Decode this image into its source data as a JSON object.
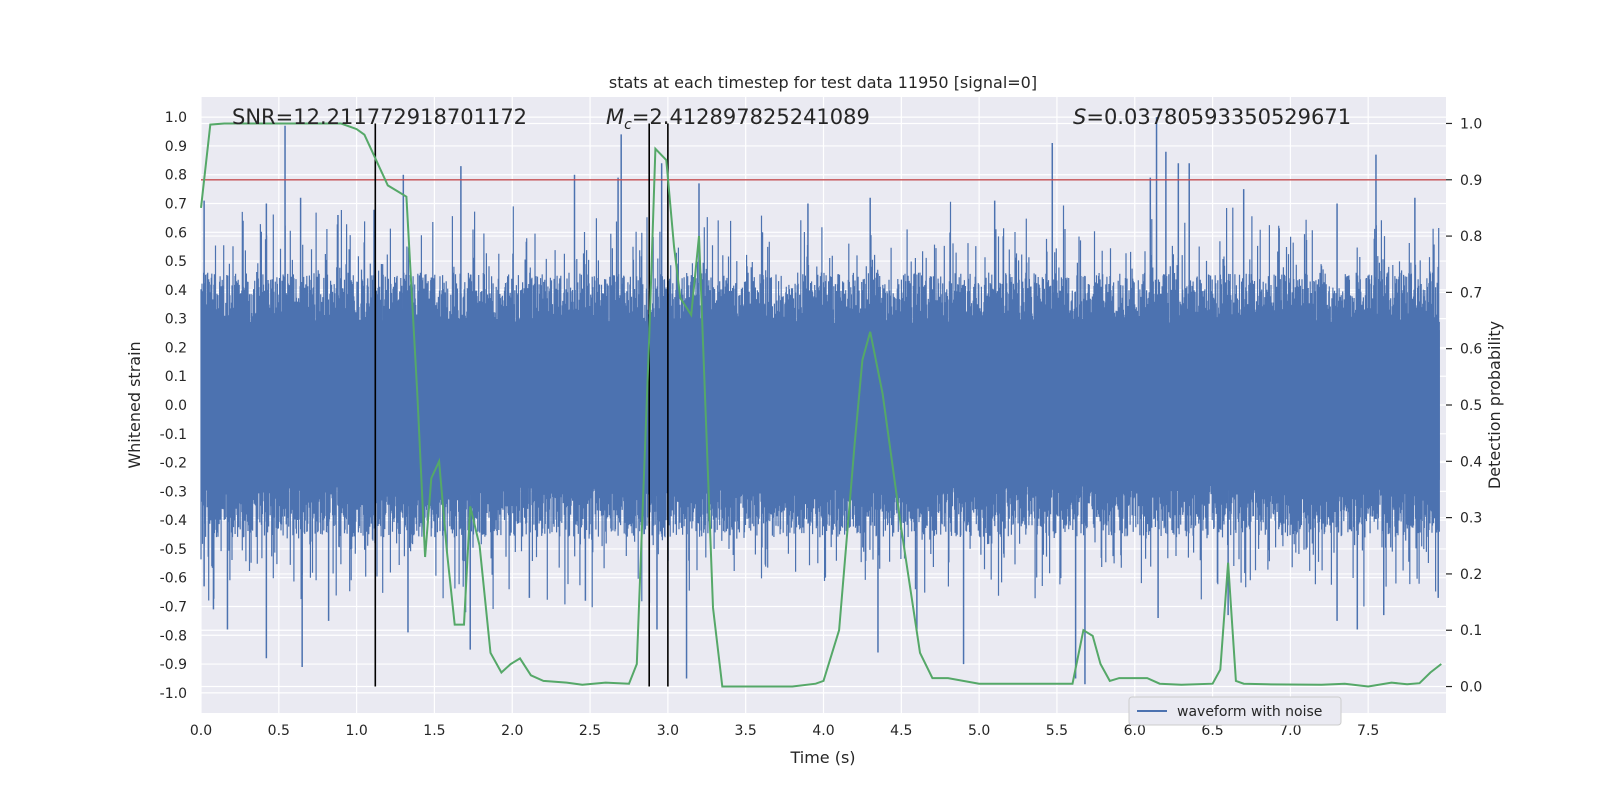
{
  "chart_data": {
    "type": "line",
    "title": "stats at each timestep for test data 11950 [signal=0]",
    "xlabel": "Time (s)",
    "ylabel": "Whitened strain",
    "y2label": "Detection probability",
    "xlim": [
      0.0,
      8.0
    ],
    "ylim": [
      -1.07,
      1.07
    ],
    "y2lim": [
      -0.047,
      1.047
    ],
    "xticks": [
      "0.0",
      "0.5",
      "1.0",
      "1.5",
      "2.0",
      "2.5",
      "3.0",
      "3.5",
      "4.0",
      "4.5",
      "5.0",
      "5.5",
      "6.0",
      "6.5",
      "7.0",
      "7.5"
    ],
    "xtick_values": [
      0.0,
      0.5,
      1.0,
      1.5,
      2.0,
      2.5,
      3.0,
      3.5,
      4.0,
      4.5,
      5.0,
      5.5,
      6.0,
      6.5,
      7.0,
      7.5
    ],
    "yticks": [
      "1.0",
      "0.9",
      "0.8",
      "0.7",
      "0.6",
      "0.5",
      "0.4",
      "0.3",
      "0.2",
      "0.1",
      "0.0",
      "-0.1",
      "-0.2",
      "-0.3",
      "-0.4",
      "-0.5",
      "-0.6",
      "-0.7",
      "-0.8",
      "-0.9",
      "-1.0"
    ],
    "ytick_values": [
      1.0,
      0.9,
      0.8,
      0.7,
      0.6,
      0.5,
      0.4,
      0.3,
      0.2,
      0.1,
      0.0,
      -0.1,
      -0.2,
      -0.3,
      -0.4,
      -0.5,
      -0.6,
      -0.7,
      -0.8,
      -0.9,
      -1.0
    ],
    "y2ticks": [
      "1.0",
      "0.9",
      "0.8",
      "0.7",
      "0.6",
      "0.5",
      "0.4",
      "0.3",
      "0.2",
      "0.1",
      "0.0"
    ],
    "y2tick_values": [
      1.0,
      0.9,
      0.8,
      0.7,
      0.6,
      0.5,
      0.4,
      0.3,
      0.2,
      0.1,
      0.0
    ],
    "grid": true,
    "annotations": {
      "snr": "SNR=12.211772918701172",
      "mc_symbol": "M",
      "mc_sub": "c",
      "mc_value": "=2.412897825241089",
      "s_symbol": "S",
      "s_value": "=0.037805933505296 71"
    },
    "series": [
      {
        "name": "waveform with noise",
        "axis": "left",
        "color": "#4c72b0",
        "description_values": "dense noise, envelope approx ±0.4 with spikes to ±1.0",
        "spikes_pos": [
          [
            0.02,
            0.71
          ],
          [
            0.27,
            0.64
          ],
          [
            0.42,
            0.7
          ],
          [
            0.54,
            0.97
          ],
          [
            0.64,
            0.72
          ],
          [
            0.88,
            0.66
          ],
          [
            1.16,
            0.49
          ],
          [
            1.3,
            0.8
          ],
          [
            1.67,
            0.83
          ],
          [
            2.4,
            0.8
          ],
          [
            2.68,
            0.79
          ],
          [
            2.7,
            0.94
          ],
          [
            2.96,
            0.84
          ],
          [
            3.2,
            0.77
          ],
          [
            3.9,
            0.7
          ],
          [
            4.3,
            0.72
          ],
          [
            5.1,
            0.71
          ],
          [
            5.47,
            0.91
          ],
          [
            6.1,
            0.79
          ],
          [
            6.14,
            1.0
          ],
          [
            6.2,
            0.88
          ],
          [
            6.28,
            0.84
          ],
          [
            6.35,
            0.84
          ],
          [
            6.7,
            0.75
          ],
          [
            7.3,
            0.7
          ],
          [
            7.55,
            0.87
          ],
          [
            7.8,
            0.72
          ],
          [
            7.95,
            0.48
          ]
        ],
        "spikes_neg": [
          [
            0.02,
            -0.63
          ],
          [
            0.08,
            -0.71
          ],
          [
            0.17,
            -0.78
          ],
          [
            0.42,
            -0.88
          ],
          [
            0.65,
            -0.91
          ],
          [
            0.82,
            -0.75
          ],
          [
            1.33,
            -0.79
          ],
          [
            1.7,
            -0.72
          ],
          [
            1.73,
            -0.85
          ],
          [
            2.11,
            -0.67
          ],
          [
            2.47,
            -0.68
          ],
          [
            2.93,
            -0.78
          ],
          [
            3.12,
            -0.95
          ],
          [
            4.35,
            -0.86
          ],
          [
            4.6,
            -0.78
          ],
          [
            4.9,
            -0.9
          ],
          [
            5.62,
            -0.95
          ],
          [
            5.68,
            -0.97
          ],
          [
            6.15,
            -0.74
          ],
          [
            6.6,
            -0.73
          ],
          [
            7.3,
            -0.75
          ],
          [
            7.43,
            -0.78
          ],
          [
            7.6,
            -0.73
          ],
          [
            7.95,
            -0.67
          ]
        ]
      },
      {
        "name": "",
        "axis": "right",
        "color": "#55a868",
        "x": [
          0.0,
          0.06,
          0.15,
          0.3,
          0.6,
          0.9,
          1.0,
          1.05,
          1.1,
          1.2,
          1.26,
          1.32,
          1.39,
          1.44,
          1.48,
          1.53,
          1.58,
          1.63,
          1.69,
          1.73,
          1.79,
          1.86,
          1.93,
          1.99,
          2.05,
          2.12,
          2.2,
          2.35,
          2.45,
          2.6,
          2.75,
          2.8,
          2.88,
          2.92,
          2.99,
          3.04,
          3.08,
          3.15,
          3.2,
          3.29,
          3.35,
          3.5,
          3.8,
          3.95,
          4.0,
          4.1,
          4.2,
          4.25,
          4.3,
          4.38,
          4.5,
          4.62,
          4.7,
          4.8,
          5.0,
          5.5,
          5.6,
          5.67,
          5.73,
          5.78,
          5.84,
          5.9,
          6.08,
          6.16,
          6.3,
          6.5,
          6.55,
          6.6,
          6.65,
          6.7,
          6.85,
          7.2,
          7.35,
          7.5,
          7.65,
          7.75,
          7.83,
          7.9,
          7.97
        ],
        "y": [
          0.85,
          0.998,
          1.0,
          1.0,
          1.0,
          1.0,
          0.99,
          0.98,
          0.95,
          0.89,
          0.88,
          0.87,
          0.52,
          0.23,
          0.37,
          0.4,
          0.24,
          0.11,
          0.11,
          0.32,
          0.25,
          0.06,
          0.025,
          0.04,
          0.05,
          0.02,
          0.01,
          0.007,
          0.003,
          0.007,
          0.005,
          0.04,
          0.62,
          0.955,
          0.935,
          0.78,
          0.69,
          0.66,
          0.8,
          0.14,
          0.0,
          0.0,
          0.0,
          0.005,
          0.01,
          0.1,
          0.43,
          0.58,
          0.63,
          0.52,
          0.28,
          0.06,
          0.015,
          0.015,
          0.005,
          0.005,
          0.005,
          0.1,
          0.09,
          0.04,
          0.01,
          0.015,
          0.015,
          0.005,
          0.003,
          0.005,
          0.03,
          0.22,
          0.01,
          0.005,
          0.004,
          0.003,
          0.005,
          0.0,
          0.007,
          0.004,
          0.006,
          0.025,
          0.04
        ]
      }
    ],
    "hlines": [
      {
        "axis": "right",
        "value": 0.9,
        "color": "#c44e52"
      }
    ],
    "vlines": [
      {
        "x": 1.12,
        "ymin": 0.0,
        "ymax": 1.0,
        "color": "#000000"
      },
      {
        "x": 2.88,
        "ymin": 0.0,
        "ymax": 1.0,
        "color": "#000000"
      },
      {
        "x": 3.0,
        "ymin": 0.0,
        "ymax": 1.0,
        "color": "#000000"
      }
    ],
    "legend_placement": "lower-right",
    "colors": {
      "plot_bg": "#eaeaf2",
      "grid": "#ffffff",
      "strain": "#4c72b0",
      "prob": "#55a868",
      "threshold": "#c44e52",
      "marker": "#000000"
    }
  }
}
